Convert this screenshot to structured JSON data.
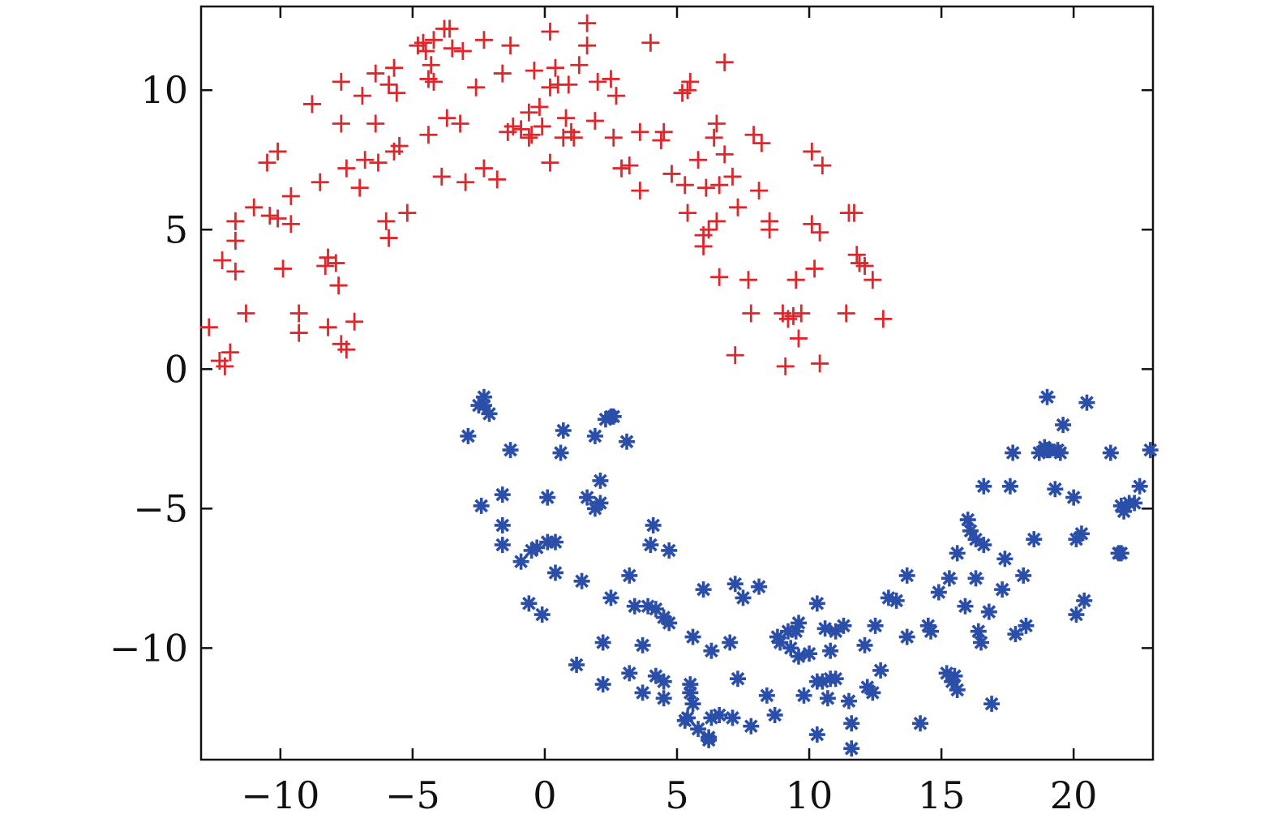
{
  "chart_data": {
    "type": "scatter",
    "title": "",
    "xlabel": "",
    "ylabel": "",
    "xlim": [
      -13,
      23
    ],
    "ylim": [
      -14,
      13
    ],
    "x_ticks": [
      -10,
      -5,
      0,
      5,
      10,
      15,
      20
    ],
    "y_ticks": [
      -10,
      -5,
      0,
      5,
      10
    ],
    "x_tick_labels": [
      "−10",
      "−5",
      "0",
      "5",
      "10",
      "15",
      "20"
    ],
    "y_tick_labels": [
      "−10",
      "−5",
      "0",
      "5",
      "10"
    ],
    "grid": false,
    "legend": "none",
    "series": [
      {
        "marker": "plus",
        "color": "#e0262b",
        "points": [
          [
            -12.7,
            1.5
          ],
          [
            -12.3,
            0.3
          ],
          [
            -12.1,
            0.1
          ],
          [
            -11.9,
            0.6
          ],
          [
            -12.2,
            3.9
          ],
          [
            -11.7,
            4.6
          ],
          [
            -11.7,
            5.3
          ],
          [
            -11.7,
            3.5
          ],
          [
            -11.3,
            2.0
          ],
          [
            -11.0,
            5.8
          ],
          [
            -10.5,
            7.4
          ],
          [
            -10.4,
            5.5
          ],
          [
            -10.1,
            7.8
          ],
          [
            -10.1,
            5.4
          ],
          [
            -9.9,
            3.6
          ],
          [
            -9.6,
            6.2
          ],
          [
            -9.6,
            5.2
          ],
          [
            -9.3,
            2.0
          ],
          [
            -9.3,
            1.3
          ],
          [
            -8.8,
            9.5
          ],
          [
            -8.5,
            6.7
          ],
          [
            -8.3,
            3.7
          ],
          [
            -8.2,
            4.0
          ],
          [
            -8.2,
            1.5
          ],
          [
            -7.9,
            3.8
          ],
          [
            -7.8,
            3.0
          ],
          [
            -7.7,
            10.3
          ],
          [
            -7.7,
            8.8
          ],
          [
            -7.7,
            0.9
          ],
          [
            -7.5,
            0.7
          ],
          [
            -7.5,
            7.2
          ],
          [
            -7.2,
            1.7
          ],
          [
            -7.0,
            6.5
          ],
          [
            -6.9,
            9.8
          ],
          [
            -6.8,
            7.5
          ],
          [
            -6.4,
            10.6
          ],
          [
            -6.4,
            8.8
          ],
          [
            -6.3,
            7.4
          ],
          [
            -6.0,
            5.3
          ],
          [
            -5.9,
            4.7
          ],
          [
            -5.9,
            10.2
          ],
          [
            -5.7,
            10.8
          ],
          [
            -5.7,
            7.8
          ],
          [
            -5.6,
            9.9
          ],
          [
            -5.5,
            8.0
          ],
          [
            -5.2,
            5.6
          ],
          [
            -4.8,
            11.6
          ],
          [
            -4.6,
            11.7
          ],
          [
            -4.5,
            11.4
          ],
          [
            -4.4,
            10.4
          ],
          [
            -4.4,
            8.4
          ],
          [
            -4.3,
            10.9
          ],
          [
            -4.2,
            11.8
          ],
          [
            -4.2,
            10.3
          ],
          [
            -3.9,
            6.9
          ],
          [
            -3.8,
            12.2
          ],
          [
            -3.7,
            9.0
          ],
          [
            -3.6,
            12.2
          ],
          [
            -3.5,
            11.5
          ],
          [
            -3.2,
            8.8
          ],
          [
            -3.1,
            11.4
          ],
          [
            -3.0,
            6.7
          ],
          [
            -2.6,
            10.1
          ],
          [
            -2.3,
            7.2
          ],
          [
            -2.3,
            11.8
          ],
          [
            -1.8,
            6.8
          ],
          [
            -1.6,
            10.6
          ],
          [
            -1.4,
            8.5
          ],
          [
            -1.3,
            11.6
          ],
          [
            -1.2,
            8.7
          ],
          [
            -0.9,
            8.6
          ],
          [
            -0.6,
            8.3
          ],
          [
            -0.6,
            9.2
          ],
          [
            -0.5,
            8.4
          ],
          [
            -0.4,
            10.7
          ],
          [
            -0.2,
            9.4
          ],
          [
            -0.1,
            8.7
          ],
          [
            0.2,
            12.1
          ],
          [
            0.2,
            10.1
          ],
          [
            0.2,
            7.4
          ],
          [
            0.4,
            10.8
          ],
          [
            0.5,
            10.2
          ],
          [
            0.7,
            8.3
          ],
          [
            0.8,
            9.0
          ],
          [
            0.9,
            10.2
          ],
          [
            1.0,
            8.5
          ],
          [
            1.1,
            8.3
          ],
          [
            1.3,
            10.9
          ],
          [
            1.6,
            12.4
          ],
          [
            1.6,
            11.6
          ],
          [
            1.9,
            8.9
          ],
          [
            2.0,
            10.3
          ],
          [
            2.5,
            10.4
          ],
          [
            2.6,
            8.3
          ],
          [
            2.7,
            9.8
          ],
          [
            2.9,
            7.2
          ],
          [
            3.2,
            7.3
          ],
          [
            3.6,
            8.5
          ],
          [
            3.6,
            6.4
          ],
          [
            4.0,
            11.7
          ],
          [
            4.4,
            8.2
          ],
          [
            4.5,
            8.5
          ],
          [
            4.8,
            7.0
          ],
          [
            5.2,
            9.9
          ],
          [
            5.3,
            6.6
          ],
          [
            5.4,
            5.6
          ],
          [
            5.4,
            10.0
          ],
          [
            5.5,
            10.3
          ],
          [
            5.8,
            7.5
          ],
          [
            6.0,
            4.8
          ],
          [
            6.0,
            4.4
          ],
          [
            6.1,
            6.5
          ],
          [
            6.2,
            5.0
          ],
          [
            6.4,
            8.3
          ],
          [
            6.5,
            5.3
          ],
          [
            6.5,
            8.8
          ],
          [
            6.6,
            3.3
          ],
          [
            6.6,
            6.6
          ],
          [
            6.8,
            11.0
          ],
          [
            6.8,
            7.7
          ],
          [
            7.1,
            6.9
          ],
          [
            7.2,
            0.5
          ],
          [
            7.3,
            5.8
          ],
          [
            7.7,
            3.2
          ],
          [
            7.8,
            2.0
          ],
          [
            7.9,
            8.4
          ],
          [
            8.1,
            6.4
          ],
          [
            8.2,
            8.1
          ],
          [
            8.5,
            5.3
          ],
          [
            8.5,
            5.0
          ],
          [
            9.0,
            2.0
          ],
          [
            9.1,
            0.1
          ],
          [
            9.2,
            1.8
          ],
          [
            9.4,
            1.9
          ],
          [
            9.5,
            3.2
          ],
          [
            9.6,
            1.1
          ],
          [
            9.7,
            2.0
          ],
          [
            10.1,
            7.8
          ],
          [
            10.1,
            5.2
          ],
          [
            10.2,
            3.6
          ],
          [
            10.4,
            0.2
          ],
          [
            10.4,
            4.9
          ],
          [
            10.5,
            7.3
          ],
          [
            11.4,
            2.0
          ],
          [
            11.5,
            5.6
          ],
          [
            11.7,
            5.6
          ],
          [
            11.8,
            4.1
          ],
          [
            11.9,
            3.8
          ],
          [
            12.1,
            3.7
          ],
          [
            12.4,
            3.2
          ],
          [
            12.8,
            1.8
          ]
        ]
      },
      {
        "marker": "asterisk",
        "color": "#2b4fa8",
        "points": [
          [
            -2.9,
            -2.4
          ],
          [
            -2.5,
            -1.3
          ],
          [
            -2.3,
            -1.0
          ],
          [
            -2.3,
            -1.3
          ],
          [
            -2.1,
            -1.6
          ],
          [
            -2.4,
            -4.9
          ],
          [
            -1.6,
            -4.5
          ],
          [
            -1.6,
            -5.6
          ],
          [
            -1.6,
            -6.3
          ],
          [
            -1.3,
            -2.9
          ],
          [
            -0.9,
            -6.9
          ],
          [
            -0.6,
            -8.4
          ],
          [
            -0.5,
            -6.5
          ],
          [
            -0.3,
            -6.4
          ],
          [
            -0.1,
            -8.8
          ],
          [
            0.1,
            -6.2
          ],
          [
            0.1,
            -4.6
          ],
          [
            0.4,
            -6.2
          ],
          [
            0.4,
            -7.3
          ],
          [
            0.6,
            -3.0
          ],
          [
            0.7,
            -2.2
          ],
          [
            1.2,
            -10.6
          ],
          [
            1.4,
            -7.6
          ],
          [
            1.6,
            -4.6
          ],
          [
            1.9,
            -5.0
          ],
          [
            1.9,
            -2.4
          ],
          [
            2.1,
            -4.8
          ],
          [
            2.1,
            -4.0
          ],
          [
            2.2,
            -11.3
          ],
          [
            2.2,
            -9.8
          ],
          [
            2.3,
            -1.8
          ],
          [
            2.5,
            -1.7
          ],
          [
            2.5,
            -8.2
          ],
          [
            2.6,
            -1.7
          ],
          [
            3.1,
            -2.6
          ],
          [
            3.2,
            -10.9
          ],
          [
            3.2,
            -7.4
          ],
          [
            3.4,
            -8.5
          ],
          [
            3.7,
            -9.9
          ],
          [
            3.7,
            -11.6
          ],
          [
            3.9,
            -8.5
          ],
          [
            4.0,
            -6.3
          ],
          [
            4.1,
            -5.6
          ],
          [
            4.2,
            -11.0
          ],
          [
            4.2,
            -8.6
          ],
          [
            4.5,
            -11.2
          ],
          [
            4.5,
            -8.9
          ],
          [
            4.5,
            -11.8
          ],
          [
            4.7,
            -9.1
          ],
          [
            4.7,
            -6.5
          ],
          [
            5.3,
            -12.6
          ],
          [
            5.4,
            -12.5
          ],
          [
            5.5,
            -11.3
          ],
          [
            5.5,
            -11.6
          ],
          [
            5.6,
            -9.6
          ],
          [
            5.6,
            -12.0
          ],
          [
            5.8,
            -12.9
          ],
          [
            6.0,
            -7.9
          ],
          [
            6.2,
            -13.2
          ],
          [
            6.2,
            -13.3
          ],
          [
            6.3,
            -10.1
          ],
          [
            6.3,
            -12.5
          ],
          [
            6.6,
            -12.4
          ],
          [
            7.0,
            -9.8
          ],
          [
            7.1,
            -12.5
          ],
          [
            7.2,
            -7.7
          ],
          [
            7.3,
            -11.1
          ],
          [
            7.5,
            -8.2
          ],
          [
            7.8,
            -12.8
          ],
          [
            8.1,
            -7.8
          ],
          [
            8.4,
            -11.7
          ],
          [
            8.7,
            -12.4
          ],
          [
            8.8,
            -9.6
          ],
          [
            8.9,
            -9.8
          ],
          [
            9.2,
            -9.4
          ],
          [
            9.3,
            -10.0
          ],
          [
            9.5,
            -9.4
          ],
          [
            9.6,
            -9.1
          ],
          [
            9.6,
            -10.3
          ],
          [
            9.8,
            -11.7
          ],
          [
            10.0,
            -10.2
          ],
          [
            10.3,
            -11.2
          ],
          [
            10.3,
            -8.4
          ],
          [
            10.3,
            -13.1
          ],
          [
            10.5,
            -11.2
          ],
          [
            10.6,
            -9.3
          ],
          [
            10.7,
            -11.8
          ],
          [
            10.8,
            -11.1
          ],
          [
            10.8,
            -10.1
          ],
          [
            11.0,
            -9.4
          ],
          [
            11.0,
            -11.1
          ],
          [
            11.3,
            -9.2
          ],
          [
            11.5,
            -11.9
          ],
          [
            11.6,
            -12.7
          ],
          [
            11.6,
            -13.6
          ],
          [
            12.1,
            -9.9
          ],
          [
            12.2,
            -11.4
          ],
          [
            12.4,
            -11.6
          ],
          [
            12.5,
            -9.2
          ],
          [
            12.7,
            -10.8
          ],
          [
            13.0,
            -8.2
          ],
          [
            13.3,
            -8.3
          ],
          [
            13.7,
            -9.6
          ],
          [
            13.7,
            -7.4
          ],
          [
            14.2,
            -12.7
          ],
          [
            14.5,
            -9.2
          ],
          [
            14.6,
            -9.4
          ],
          [
            14.9,
            -8.0
          ],
          [
            15.2,
            -10.9
          ],
          [
            15.3,
            -7.5
          ],
          [
            15.4,
            -11.2
          ],
          [
            15.5,
            -11.0
          ],
          [
            15.6,
            -6.6
          ],
          [
            15.6,
            -11.5
          ],
          [
            15.9,
            -8.5
          ],
          [
            16.0,
            -5.4
          ],
          [
            16.1,
            -5.8
          ],
          [
            16.3,
            -6.1
          ],
          [
            16.3,
            -7.5
          ],
          [
            16.4,
            -9.4
          ],
          [
            16.5,
            -9.8
          ],
          [
            16.6,
            -6.3
          ],
          [
            16.6,
            -4.2
          ],
          [
            16.8,
            -8.7
          ],
          [
            16.9,
            -12.0
          ],
          [
            17.3,
            -7.9
          ],
          [
            17.4,
            -6.8
          ],
          [
            17.6,
            -4.2
          ],
          [
            17.7,
            -3.0
          ],
          [
            17.8,
            -9.5
          ],
          [
            18.1,
            -7.4
          ],
          [
            18.2,
            -9.2
          ],
          [
            18.5,
            -6.1
          ],
          [
            18.7,
            -3.0
          ],
          [
            18.9,
            -2.8
          ],
          [
            19.0,
            -2.9
          ],
          [
            19.0,
            -1.0
          ],
          [
            19.1,
            -2.9
          ],
          [
            19.3,
            -4.3
          ],
          [
            19.4,
            -2.9
          ],
          [
            19.5,
            -3.0
          ],
          [
            19.6,
            -2.0
          ],
          [
            20.0,
            -4.6
          ],
          [
            20.1,
            -6.1
          ],
          [
            20.1,
            -8.8
          ],
          [
            20.3,
            -5.9
          ],
          [
            20.4,
            -8.3
          ],
          [
            20.5,
            -1.2
          ],
          [
            21.4,
            -3.0
          ],
          [
            21.7,
            -6.6
          ],
          [
            21.8,
            -6.6
          ],
          [
            21.8,
            -4.9
          ],
          [
            21.9,
            -5.1
          ],
          [
            22.1,
            -4.8
          ],
          [
            22.3,
            -4.8
          ],
          [
            22.5,
            -4.2
          ],
          [
            22.9,
            -2.9
          ]
        ]
      }
    ]
  }
}
